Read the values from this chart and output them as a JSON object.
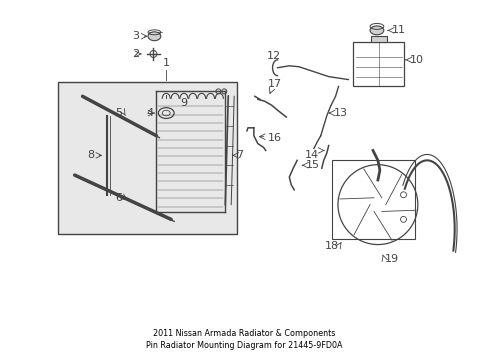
{
  "title": "2011 Nissan Armada Radiator & Components\nPin Radiator Mounting Diagram for 21445-9FD0A",
  "bg_color": "#ffffff",
  "line_color": "#444444",
  "fig_width": 4.89,
  "fig_height": 3.6,
  "dpi": 100
}
